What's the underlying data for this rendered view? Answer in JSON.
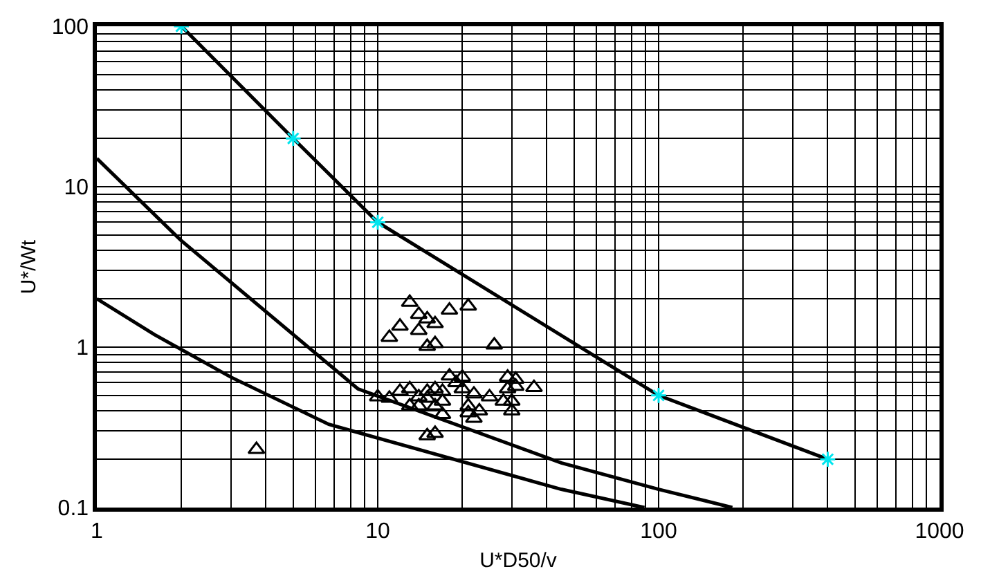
{
  "chart_data": {
    "type": "scatter",
    "xlabel": "U*D50/v",
    "ylabel": "U*/Wt",
    "log": "xy",
    "grid": true,
    "xlim": [
      1,
      1000
    ],
    "xticks": [
      1,
      10,
      100,
      1000
    ],
    "ylim": [
      0.1,
      100
    ],
    "yticks": [
      0.1,
      1,
      10,
      100
    ],
    "series": [
      {
        "type": "line",
        "color": "#000000",
        "marker": "none",
        "x": [
          2,
          5,
          10,
          100,
          400
        ],
        "values": [
          100,
          20,
          6,
          0.5,
          0.2
        ]
      },
      {
        "color": "#00e5ee",
        "marker": "cross",
        "x": [
          2,
          5,
          10,
          100,
          400
        ],
        "values": [
          100,
          20,
          6,
          0.5,
          0.2
        ]
      },
      {
        "type": "line",
        "color": "#000000",
        "marker": "none",
        "x": [
          1,
          2,
          8.5,
          45,
          100,
          183
        ],
        "values": [
          15,
          4.6,
          0.55,
          0.19,
          0.13,
          0.1
        ]
      },
      {
        "type": "line",
        "color": "#000000",
        "marker": "none",
        "x": [
          1,
          1.6,
          3,
          6.7,
          45,
          89
        ],
        "values": [
          2,
          1.2,
          0.65,
          0.33,
          0.13,
          0.1
        ]
      },
      {
        "color": "#000000",
        "marker": "triangle",
        "x": [
          13,
          14,
          15,
          16,
          12,
          14,
          11,
          15,
          16,
          18,
          21,
          26,
          10,
          11,
          12,
          13,
          13,
          14,
          14,
          15,
          15,
          16,
          17,
          16,
          17,
          18,
          19,
          20,
          20,
          22,
          21,
          21,
          22,
          23,
          25,
          17,
          15,
          16,
          29,
          31,
          31,
          29,
          36,
          28,
          30,
          30,
          3.7
        ],
        "values": [
          1.9,
          1.6,
          1.5,
          1.4,
          1.35,
          1.27,
          1.15,
          1.01,
          1.05,
          1.7,
          1.8,
          1.03,
          0.49,
          0.48,
          0.53,
          0.55,
          0.43,
          0.49,
          0.43,
          0.53,
          0.48,
          0.55,
          0.53,
          0.43,
          0.46,
          0.66,
          0.6,
          0.65,
          0.55,
          0.51,
          0.43,
          0.39,
          0.36,
          0.4,
          0.49,
          0.38,
          0.28,
          0.29,
          0.65,
          0.63,
          0.57,
          0.55,
          0.56,
          0.46,
          0.4,
          0.46,
          0.23
        ]
      }
    ]
  }
}
